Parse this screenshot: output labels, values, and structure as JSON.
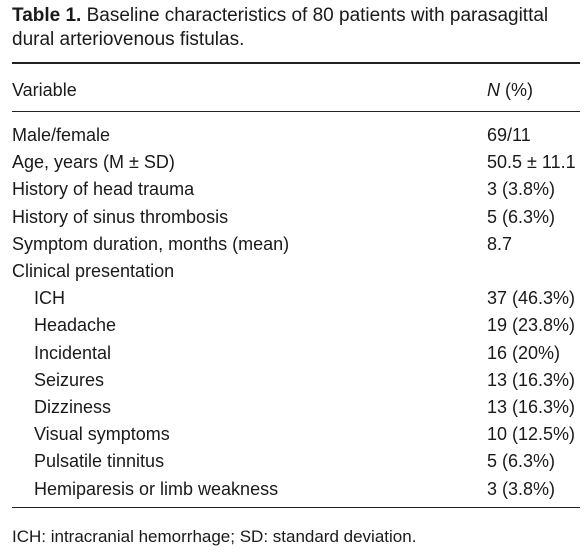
{
  "caption": {
    "label": "Table 1.",
    "text": "Baseline characteristics of 80 patients with parasagittal dural arteriovenous fistulas."
  },
  "table": {
    "header": [
      "Variable",
      "N",
      "(%)"
    ],
    "rows": [
      [
        "Male/female",
        "69/11"
      ],
      [
        "Age, years (M ± SD)",
        "50.5 ± 11.1"
      ],
      [
        "History of head trauma",
        "3 (3.8%)"
      ],
      [
        "History of sinus thrombosis",
        "5 (6.3%)"
      ],
      [
        "Symptom duration, months (mean)",
        "8.7"
      ]
    ],
    "group": {
      "label": "Clinical presentation",
      "rows": [
        [
          "ICH",
          "37 (46.3%)"
        ],
        [
          "Headache",
          "19 (23.8%)"
        ],
        [
          "Incidental",
          "16 (20%)"
        ],
        [
          "Seizures",
          "13 (16.3%)"
        ],
        [
          "Dizziness",
          "13 (16.3%)"
        ],
        [
          "Visual symptoms",
          "10 (12.5%)"
        ],
        [
          "Pulsatile tinnitus",
          "5 (6.3%)"
        ],
        [
          "Hemiparesis or limb weakness",
          "3 (3.8%)"
        ]
      ]
    }
  },
  "footnote": "ICH: intracranial hemorrhage; SD: standard deviation."
}
